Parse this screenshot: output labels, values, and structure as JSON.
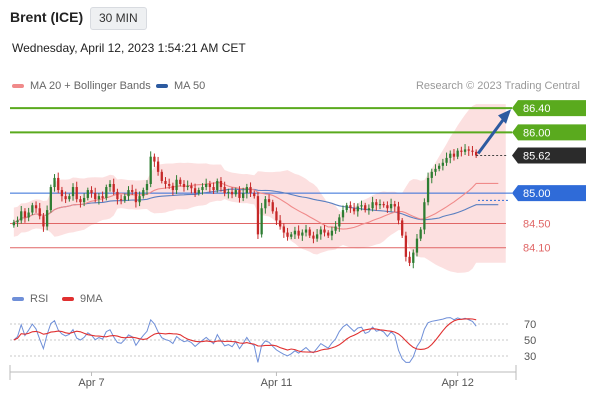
{
  "header": {
    "title": "Brent (ICE)",
    "timeframe": "30 MIN",
    "datetime": "Wednesday, April 12, 2023 1:54:21 AM CET"
  },
  "credit": "Research © 2023 Trading Central",
  "legend_main": [
    {
      "label": "MA 20 + Bollinger Bands",
      "color": "#f08a8a"
    },
    {
      "label": "MA 50",
      "color": "#2c5aa0"
    }
  ],
  "legend_rsi": [
    {
      "label": "RSI",
      "color": "#6f8fd8"
    },
    {
      "label": "9MA",
      "color": "#e03030"
    }
  ],
  "chart_data": [
    {
      "type": "candlestick",
      "ylim": [
        83.7,
        86.6
      ],
      "x_ticks": [
        "Apr 7",
        "Apr 11",
        "Apr 12"
      ],
      "levels": [
        {
          "label": "86.40",
          "value": 86.4,
          "kind": "target",
          "color": "#5aaa1e"
        },
        {
          "label": "86.00",
          "value": 86.0,
          "kind": "target",
          "color": "#5aaa1e"
        },
        {
          "label": "85.62",
          "value": 85.62,
          "kind": "last",
          "color": "#2b2b2b"
        },
        {
          "label": "85.00",
          "value": 85.0,
          "kind": "pivot",
          "color": "#2f6bd8"
        },
        {
          "label": "84.50",
          "value": 84.5,
          "kind": "support",
          "color": "#e06666"
        },
        {
          "label": "84.10",
          "value": 84.1,
          "kind": "support",
          "color": "#e06666"
        }
      ],
      "close": [
        84.52,
        84.55,
        84.7,
        84.6,
        84.68,
        84.8,
        84.75,
        84.62,
        84.45,
        84.72,
        85.1,
        85.25,
        85.05,
        84.95,
        84.9,
        84.95,
        85.1,
        84.9,
        84.85,
        84.92,
        85.05,
        85.0,
        84.9,
        84.95,
        84.92,
        85.1,
        85.15,
        85.02,
        84.9,
        84.88,
        84.95,
        85.05,
        85.02,
        84.85,
        84.95,
        85.05,
        85.15,
        85.6,
        85.52,
        85.35,
        85.2,
        85.15,
        85.12,
        85.05,
        85.22,
        85.15,
        85.1,
        85.12,
        85.08,
        85.0,
        85.05,
        85.1,
        85.15,
        85.1,
        85.05,
        85.2,
        85.1,
        85.0,
        85.02,
        84.98,
        85.05,
        84.92,
        85.0,
        85.1,
        85.0,
        84.95,
        84.32,
        84.75,
        84.9,
        84.85,
        84.7,
        84.55,
        84.45,
        84.35,
        84.28,
        84.32,
        84.38,
        84.3,
        84.35,
        84.4,
        84.3,
        84.25,
        84.32,
        84.4,
        84.35,
        84.3,
        84.38,
        84.45,
        84.6,
        84.72,
        84.8,
        84.75,
        84.7,
        84.78,
        84.8,
        84.72,
        84.75,
        84.85,
        84.8,
        84.82,
        84.8,
        84.75,
        84.82,
        84.78,
        84.55,
        84.3,
        83.95,
        83.85,
        84.02,
        84.25,
        84.4,
        84.85,
        85.25,
        85.35,
        85.4,
        85.45,
        85.5,
        85.58,
        85.65,
        85.6,
        85.7,
        85.68,
        85.72,
        85.7,
        85.68,
        85.62
      ],
      "rsi": {
        "ylim": [
          20,
          80
        ],
        "ticks": [
          70,
          50,
          30
        ]
      }
    }
  ]
}
